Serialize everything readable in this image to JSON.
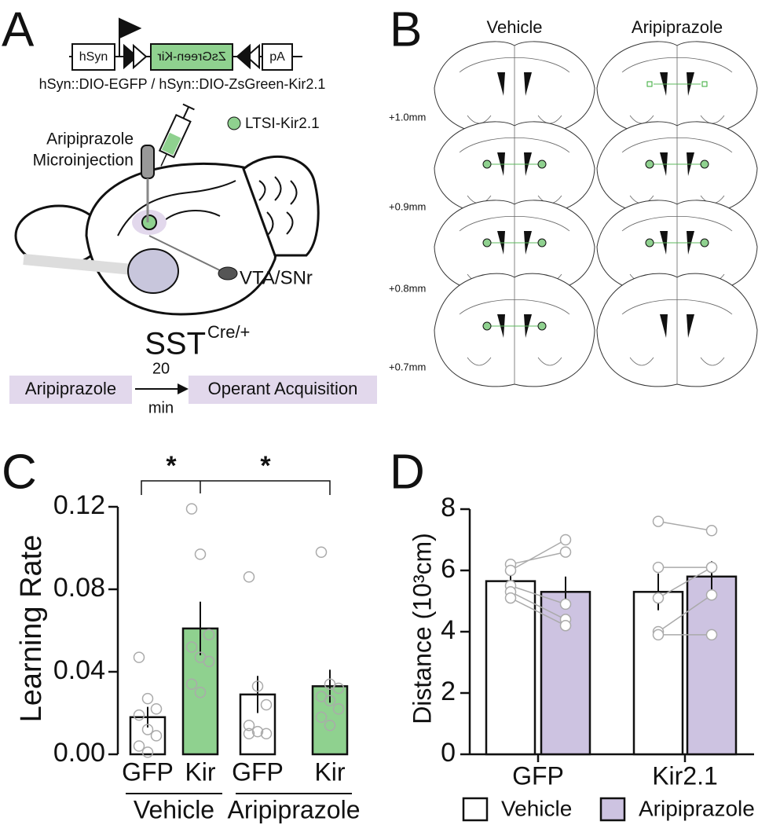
{
  "panel_a": {
    "label": "A",
    "construct": {
      "promoter": "hSyn",
      "gene": "ZsGreen-Kir",
      "polya": "pA"
    },
    "caption": "hSyn::DIO-EGFP / hSyn::DIO-ZsGreen-Kir2.1",
    "legend": "LTSI-Kir2.1",
    "injection": [
      "Aripiprazole",
      "Microinjection"
    ],
    "target": "VTA/SNr",
    "mouse": "SST",
    "mouse_sup": "Cre/+",
    "timeline": {
      "drug": "Aripiprazole",
      "delay": [
        "20",
        "min"
      ],
      "task": "Operant Acquisition"
    }
  },
  "panel_b": {
    "label": "B",
    "columns": [
      "Vehicle",
      "Aripiprazole"
    ],
    "levels": [
      "+1.0mm",
      "+0.9mm",
      "+0.8mm",
      "+0.7mm"
    ]
  },
  "chart_data": [
    {
      "type": "bar",
      "panel_label": "C",
      "y_label": "Learning Rate",
      "categories": [
        "GFP",
        "Kir",
        "GFP",
        "Kir"
      ],
      "groups": [
        "Vehicle",
        "Aripiprazole"
      ],
      "values": [
        0.018,
        0.061,
        0.029,
        0.033
      ],
      "errors": [
        0.005,
        0.013,
        0.009,
        0.008
      ],
      "colors": [
        "#ffffff",
        "#8fd18f",
        "#ffffff",
        "#8fd18f"
      ],
      "points": [
        [
          0.047,
          0.027,
          0.022,
          0.019,
          0.012,
          0.009,
          0.004,
          0.001
        ],
        [
          0.119,
          0.097,
          0.058,
          0.052,
          0.047,
          0.045,
          0.034,
          0.03
        ],
        [
          0.086,
          0.033,
          0.024,
          0.014,
          0.011,
          0.01,
          0.01
        ],
        [
          0.098,
          0.034,
          0.032,
          0.028,
          0.026,
          0.022,
          0.018,
          0.014
        ]
      ],
      "annotations": [
        "*",
        "*"
      ],
      "ylim": [
        0,
        0.12
      ],
      "yticks": [
        {
          "value": 0,
          "label": "0.00"
        },
        0.04,
        0.08,
        0.12
      ]
    },
    {
      "type": "bar",
      "panel_label": "D",
      "y_label": "Distance (10³cm)",
      "categories": [
        "GFP",
        "Kir2.1"
      ],
      "series": [
        {
          "name": "Vehicle",
          "color": "#ffffff",
          "values": [
            5.65,
            5.3
          ],
          "errors": [
            0.3,
            0.6
          ],
          "points": [
            [
              6.2,
              6.0,
              5.5,
              5.3,
              5.1
            ],
            [
              7.6,
              6.1,
              5.1,
              4.0,
              3.9
            ]
          ]
        },
        {
          "name": "Aripiprazole",
          "color": "#cdc3e1",
          "values": [
            5.3,
            5.8
          ],
          "errors": [
            0.5,
            0.5
          ],
          "points": [
            [
              6.6,
              7.0,
              4.9,
              4.4,
              4.2
            ],
            [
              7.3,
              6.1,
              6.1,
              5.2,
              3.9
            ]
          ]
        }
      ],
      "ylim": [
        0,
        8
      ],
      "yticks": [
        0,
        2,
        4,
        6,
        8
      ],
      "legend": "bottom"
    }
  ]
}
